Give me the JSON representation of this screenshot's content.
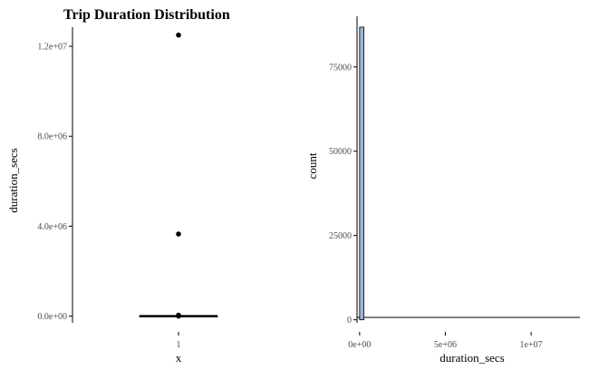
{
  "title": "Trip Duration Distribution",
  "colors": {
    "bar_fill": "#9ab5d0",
    "bar_outline": "#000000",
    "axis": "#000000",
    "tick_text": "#4d4d4d",
    "point": "#000000"
  },
  "chart_data": [
    {
      "type": "boxplot",
      "xlabel": "x",
      "ylabel": "duration_secs",
      "categories": [
        "1"
      ],
      "x_tick_labels": [
        "1"
      ],
      "yticks": [
        0,
        4000000,
        8000000,
        12000000
      ],
      "y_tick_labels": [
        "0.0e+00",
        "4.0e+06",
        "8.0e+06",
        "1.2e+07"
      ],
      "ylim": [
        -300000,
        12850000
      ],
      "box": {
        "min": 0,
        "q1": 0,
        "median": 0,
        "q3": 0,
        "max": 0
      },
      "outliers": [
        12500000,
        3650000,
        40000,
        0
      ],
      "grid": false
    },
    {
      "type": "bar",
      "subtype": "histogram",
      "xlabel": "duration_secs",
      "ylabel": "count",
      "xticks": [
        0,
        5000000,
        10000000
      ],
      "x_tick_labels": [
        "0e+00",
        "5e+06",
        "1e+07"
      ],
      "yticks": [
        0,
        25000,
        50000,
        75000
      ],
      "y_tick_labels": [
        "0",
        "25000",
        "50000",
        "75000"
      ],
      "xlim": [
        -150000,
        12850000
      ],
      "ylim": [
        -900,
        90000
      ],
      "bins": [
        {
          "x0": 0,
          "x1": 250000,
          "count": 86800
        }
      ],
      "grid": false
    }
  ]
}
